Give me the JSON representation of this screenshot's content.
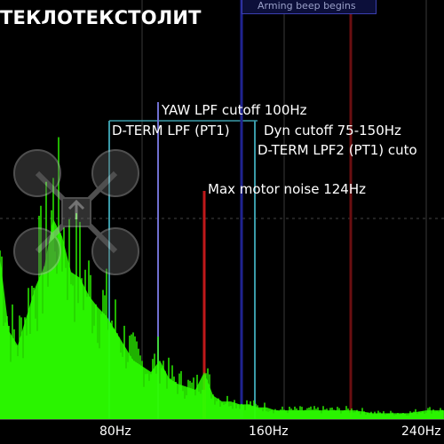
{
  "header": {
    "title": "ТЕКЛОТЕКСТОЛИТ",
    "arming_beep_label": "Arming beep begins"
  },
  "markers": [
    {
      "label": "YAW LPF cutoff 100Hz",
      "color": "#6f6fd0"
    },
    {
      "label": "D-TERM LPF (PT1)",
      "color": "#3a9aa8"
    },
    {
      "label": "Dyn cutoff 75-150Hz",
      "color": "#3a9aa8"
    },
    {
      "label": "D-TERM LPF2 (PT1) cuto",
      "color": "#3a9aa8"
    },
    {
      "label": "Max motor noise 124Hz",
      "color": "#c0181a"
    }
  ],
  "overlay": {
    "icon": "quadcopter-icon"
  },
  "colors": {
    "spectrum": "#2dff00",
    "background": "#000000",
    "grid": "#3a3a3a"
  },
  "chart_data": {
    "type": "area",
    "title": "",
    "xlabel": "",
    "ylabel": "",
    "xlim": [
      0,
      250
    ],
    "x_ticks": [
      "80Hz",
      "160Hz",
      "240Hz"
    ],
    "x_tick_values": [
      80,
      160,
      240
    ],
    "series": [
      {
        "x": [
          0,
          5,
          10,
          15,
          20,
          25,
          30,
          35,
          40,
          45,
          50,
          55,
          60,
          65,
          70,
          75,
          80,
          85,
          90,
          95,
          100,
          105,
          110,
          115,
          120,
          125,
          130,
          135,
          140,
          145,
          150,
          155,
          160,
          170,
          180,
          190,
          200,
          210,
          220,
          230,
          240,
          250
        ],
        "values": [
          0.55,
          0.3,
          0.25,
          0.35,
          0.45,
          0.52,
          0.68,
          0.62,
          0.5,
          0.48,
          0.42,
          0.38,
          0.35,
          0.3,
          0.25,
          0.2,
          0.18,
          0.16,
          0.2,
          0.14,
          0.12,
          0.11,
          0.1,
          0.16,
          0.08,
          0.06,
          0.06,
          0.05,
          0.05,
          0.04,
          0.04,
          0.03,
          0.03,
          0.03,
          0.03,
          0.03,
          0.03,
          0.02,
          0.02,
          0.02,
          0.03,
          0.03
        ]
      }
    ]
  }
}
